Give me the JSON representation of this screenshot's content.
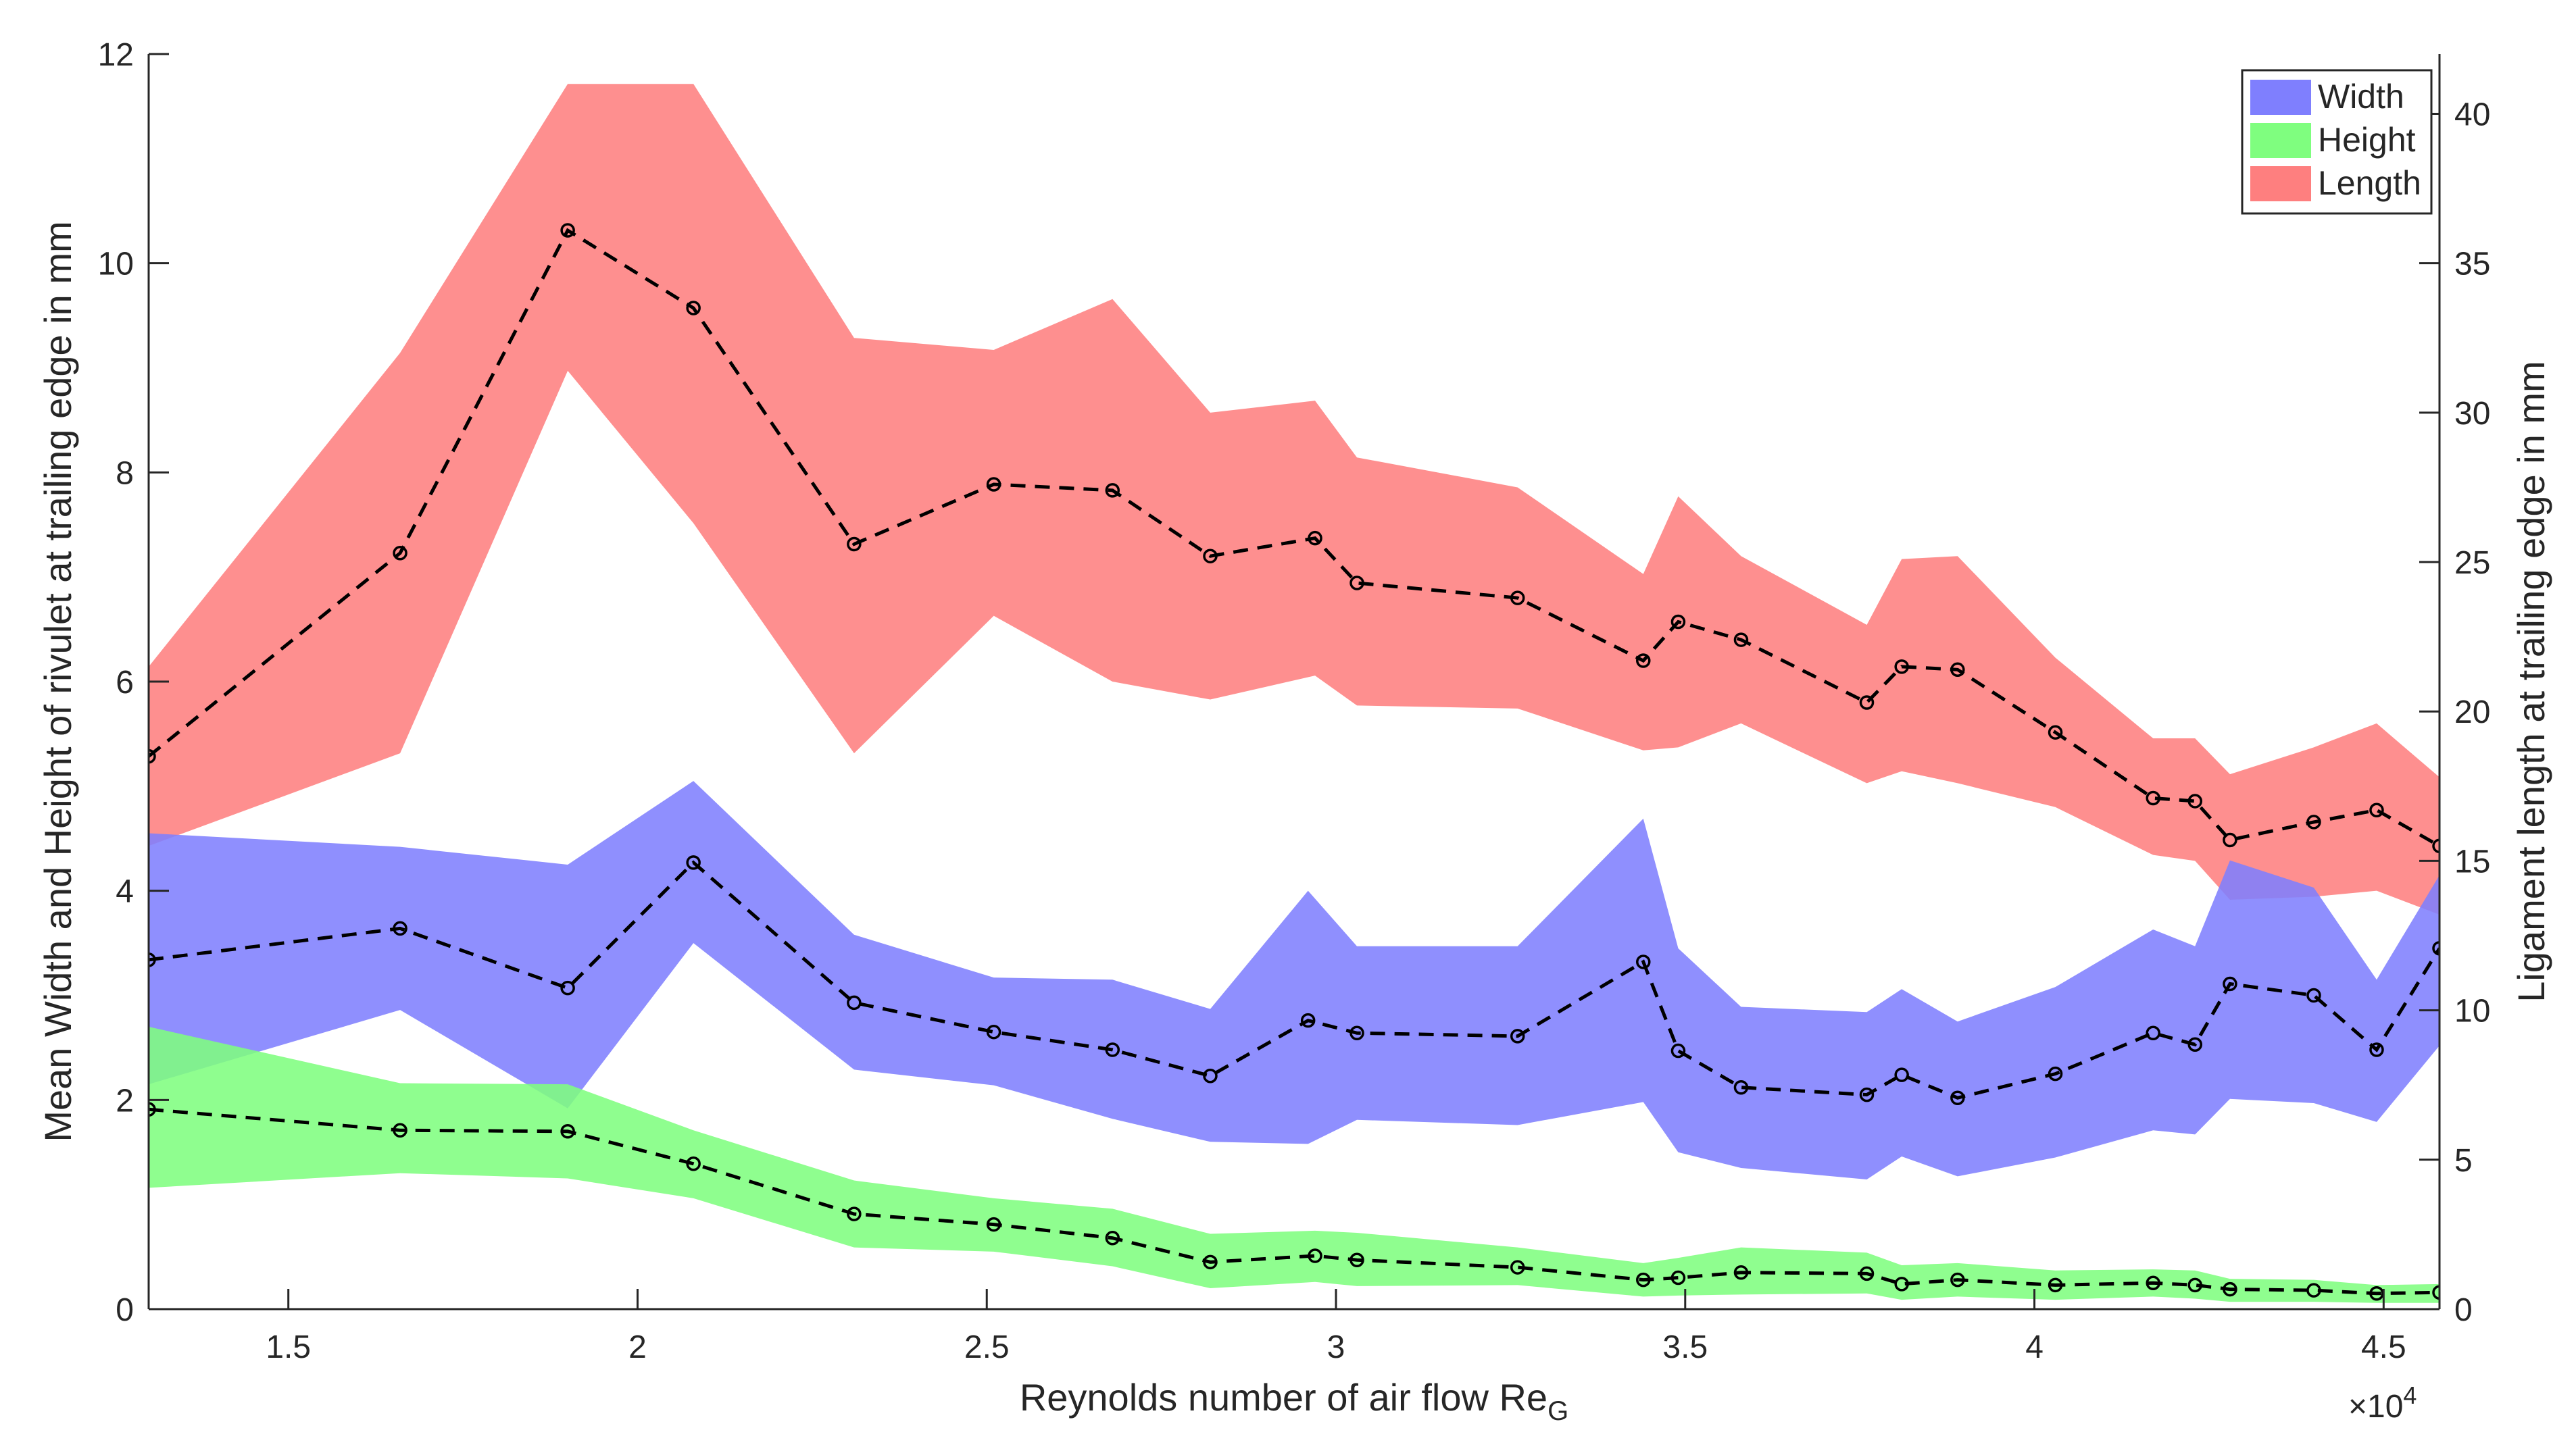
{
  "chart_data": {
    "type": "line",
    "xlabel": "Reynolds number of air flow Re",
    "xlabel_subscript": "G",
    "ylabel_left": "Mean Width and Height of rivulet at trailing edge in mm",
    "ylabel_right": "Ligament length at trailing edge in mm",
    "x_multiplier_label": "×10",
    "x_multiplier_exp": "4",
    "xlim": [
      1.3,
      4.58
    ],
    "ylim_left": [
      0,
      12
    ],
    "ylim_right": [
      0,
      42
    ],
    "x_ticks": [
      1.5,
      2,
      2.5,
      3,
      3.5,
      4,
      4.5
    ],
    "x_tick_labels": [
      "1.5",
      "2",
      "2.5",
      "3",
      "3.5",
      "4",
      "4.5"
    ],
    "y_left_ticks": [
      0,
      2,
      4,
      6,
      8,
      10,
      12
    ],
    "y_left_tick_labels": [
      "0",
      "2",
      "4",
      "6",
      "8",
      "10",
      "12"
    ],
    "y_right_ticks": [
      0,
      5,
      10,
      15,
      20,
      25,
      30,
      35,
      40
    ],
    "y_right_tick_labels": [
      "0",
      "5",
      "10",
      "15",
      "20",
      "25",
      "30",
      "35",
      "40"
    ],
    "legend": [
      {
        "name": "Width",
        "color": "#7f7ffe"
      },
      {
        "name": "Height",
        "color": "#7ffe7f"
      },
      {
        "name": "Length",
        "color": "#fe7f7f"
      }
    ],
    "series": [
      {
        "name": "Length",
        "axis": "right",
        "color": "#fe7f7f",
        "x": [
          1.3,
          1.66,
          1.9,
          2.08,
          2.31,
          2.51,
          2.68,
          2.82,
          2.97,
          3.03,
          3.26,
          3.44,
          3.49,
          3.58,
          3.76,
          3.81,
          3.89,
          4.03,
          4.17,
          4.23,
          4.28,
          4.4,
          4.49,
          4.58
        ],
        "mean": [
          18.5,
          25.3,
          36.1,
          33.5,
          25.6,
          27.6,
          27.4,
          25.2,
          25.8,
          24.3,
          23.8,
          21.7,
          23.0,
          22.4,
          20.3,
          21.5,
          21.4,
          19.3,
          17.1,
          17.0,
          15.7,
          16.3,
          16.7,
          15.5
        ],
        "upper": [
          21.5,
          32.0,
          41.0,
          41.0,
          32.5,
          32.1,
          33.8,
          30.0,
          30.4,
          28.5,
          27.5,
          24.6,
          27.2,
          25.2,
          22.9,
          25.1,
          25.2,
          21.8,
          19.1,
          19.1,
          17.9,
          18.8,
          19.6,
          17.8
        ],
        "lower": [
          15.5,
          18.6,
          31.4,
          26.3,
          18.6,
          23.2,
          21.0,
          20.4,
          21.2,
          20.2,
          20.1,
          18.7,
          18.8,
          19.6,
          17.6,
          18.0,
          17.6,
          16.8,
          15.2,
          15.0,
          13.7,
          13.8,
          14.0,
          13.2
        ]
      },
      {
        "name": "Width",
        "axis": "left",
        "color": "#7f7ffe",
        "x": [
          1.3,
          1.66,
          1.9,
          2.08,
          2.31,
          2.51,
          2.68,
          2.82,
          2.96,
          3.03,
          3.26,
          3.44,
          3.49,
          3.58,
          3.76,
          3.81,
          3.89,
          4.03,
          4.17,
          4.23,
          4.28,
          4.4,
          4.49,
          4.58
        ],
        "mean": [
          3.34,
          3.64,
          3.07,
          4.27,
          2.93,
          2.65,
          2.48,
          2.23,
          2.76,
          2.64,
          2.61,
          3.32,
          2.47,
          2.12,
          2.05,
          2.24,
          2.02,
          2.25,
          2.64,
          2.53,
          3.11,
          3.0,
          2.48,
          3.45
        ],
        "upper": [
          4.55,
          4.42,
          4.25,
          5.05,
          3.58,
          3.17,
          3.15,
          2.87,
          4.0,
          3.47,
          3.47,
          4.69,
          3.45,
          2.89,
          2.84,
          3.06,
          2.75,
          3.08,
          3.63,
          3.47,
          4.29,
          4.03,
          3.15,
          4.15
        ],
        "lower": [
          2.15,
          2.86,
          1.92,
          3.5,
          2.29,
          2.14,
          1.82,
          1.6,
          1.58,
          1.81,
          1.76,
          1.98,
          1.5,
          1.35,
          1.24,
          1.46,
          1.27,
          1.45,
          1.71,
          1.67,
          2.01,
          1.97,
          1.79,
          2.52
        ]
      },
      {
        "name": "Height",
        "axis": "left",
        "color": "#7ffe7f",
        "x": [
          1.3,
          1.66,
          1.9,
          2.08,
          2.31,
          2.51,
          2.68,
          2.82,
          2.97,
          3.03,
          3.26,
          3.44,
          3.49,
          3.58,
          3.76,
          3.81,
          3.89,
          4.03,
          4.17,
          4.23,
          4.28,
          4.4,
          4.49,
          4.58
        ],
        "mean": [
          1.91,
          1.71,
          1.7,
          1.39,
          0.91,
          0.81,
          0.68,
          0.45,
          0.51,
          0.47,
          0.4,
          0.28,
          0.3,
          0.35,
          0.34,
          0.24,
          0.28,
          0.23,
          0.25,
          0.23,
          0.19,
          0.18,
          0.15,
          0.16
        ],
        "upper": [
          2.7,
          2.16,
          2.15,
          1.71,
          1.23,
          1.06,
          0.96,
          0.72,
          0.75,
          0.73,
          0.59,
          0.44,
          0.49,
          0.59,
          0.54,
          0.42,
          0.44,
          0.37,
          0.38,
          0.37,
          0.29,
          0.28,
          0.23,
          0.24
        ],
        "lower": [
          1.16,
          1.3,
          1.25,
          1.06,
          0.59,
          0.55,
          0.41,
          0.2,
          0.26,
          0.22,
          0.23,
          0.12,
          0.13,
          0.14,
          0.15,
          0.09,
          0.12,
          0.09,
          0.12,
          0.1,
          0.07,
          0.07,
          0.06,
          0.06
        ]
      }
    ]
  }
}
